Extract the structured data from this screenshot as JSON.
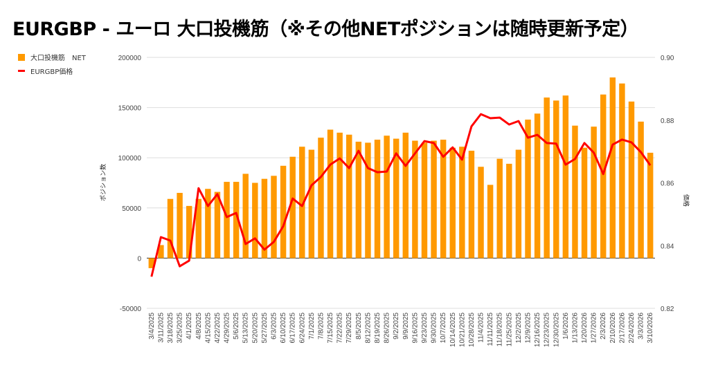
{
  "title": "EURGBP - ユーロ 大口投機筋（※その他NETポジションは随時更新予定）",
  "chart_data": {
    "type": "bar+line",
    "title": "EURGBP - ユーロ 大口投機筋（※その他NETポジションは随時更新予定）",
    "legend": [
      "大口投機筋　NET",
      "EURGBP価格"
    ],
    "legend_position": "top-left",
    "ylabel": "ポジション数",
    "y2label": "価格",
    "ylim": [
      -50000,
      200000
    ],
    "yticks": [
      "200000",
      "150000",
      "100000",
      "50000",
      "0",
      "-50000"
    ],
    "y2lim": [
      0.82,
      0.9
    ],
    "y2ticks": [
      "0.90",
      "0.88",
      "0.86",
      "0.84",
      "0.82"
    ],
    "colors": {
      "bar": "#ff9900",
      "line": "#ff0000"
    },
    "categories": [
      "3/4/2025",
      "3/11/2025",
      "3/18/2025",
      "3/25/2025",
      "4/1/2025",
      "4/8/2025",
      "4/15/2025",
      "4/22/2025",
      "4/29/2025",
      "5/6/2025",
      "5/13/2025",
      "5/20/2025",
      "5/27/2025",
      "6/3/2025",
      "6/10/2025",
      "6/17/2025",
      "6/24/2025",
      "7/1/2025",
      "7/8/2025",
      "7/15/2025",
      "7/22/2025",
      "7/29/2025",
      "8/5/2025",
      "8/12/2025",
      "8/19/2025",
      "8/26/2025",
      "9/2/2025",
      "9/9/2025",
      "9/16/2025",
      "9/23/2025",
      "9/30/2025",
      "10/7/2025",
      "10/14/2025",
      "10/21/2025",
      "10/28/2025",
      "11/4/2025",
      "11/11/2025",
      "11/18/2025",
      "11/25/2025",
      "12/2/2025",
      "12/9/2025",
      "12/16/2025",
      "12/23/2025",
      "12/30/2025",
      "1/6/2026",
      "1/13/2026",
      "1/20/2026",
      "1/27/2026",
      "2/3/2026",
      "2/10/2026",
      "2/17/2026",
      "2/24/2026",
      "3/3/2026",
      "3/10/2026"
    ],
    "series": [
      {
        "name": "大口投機筋　NET",
        "type": "bar",
        "axis": "left",
        "values": [
          -10000,
          13000,
          59000,
          65000,
          52000,
          59000,
          69000,
          66000,
          76000,
          76000,
          84000,
          75000,
          79000,
          82000,
          92000,
          101000,
          111000,
          108000,
          120000,
          128000,
          125000,
          123000,
          116000,
          115000,
          118000,
          122000,
          119000,
          125000,
          117000,
          115000,
          117000,
          118000,
          110000,
          111000,
          107000,
          91000,
          73000,
          99000,
          94000,
          108000,
          138000,
          144000,
          160000,
          157000,
          162000,
          132000,
          110000,
          131000,
          163000,
          180000,
          174000,
          156000,
          136000,
          105000
        ]
      },
      {
        "name": "EURGBP価格",
        "type": "line",
        "axis": "right",
        "values": [
          0.8301,
          0.8427,
          0.8416,
          0.8334,
          0.8352,
          0.8583,
          0.8526,
          0.8564,
          0.8491,
          0.8504,
          0.8405,
          0.8423,
          0.8387,
          0.8412,
          0.8462,
          0.855,
          0.8526,
          0.8592,
          0.8619,
          0.8658,
          0.8678,
          0.8647,
          0.8702,
          0.8647,
          0.8634,
          0.8636,
          0.8694,
          0.8654,
          0.8694,
          0.8733,
          0.8727,
          0.8683,
          0.8713,
          0.8674,
          0.878,
          0.8819,
          0.8806,
          0.8808,
          0.8786,
          0.8797,
          0.8744,
          0.8753,
          0.8727,
          0.8725,
          0.8658,
          0.8676,
          0.8727,
          0.8696,
          0.8628,
          0.8722,
          0.8738,
          0.8729,
          0.8698,
          0.8656
        ]
      }
    ],
    "grid": true
  }
}
